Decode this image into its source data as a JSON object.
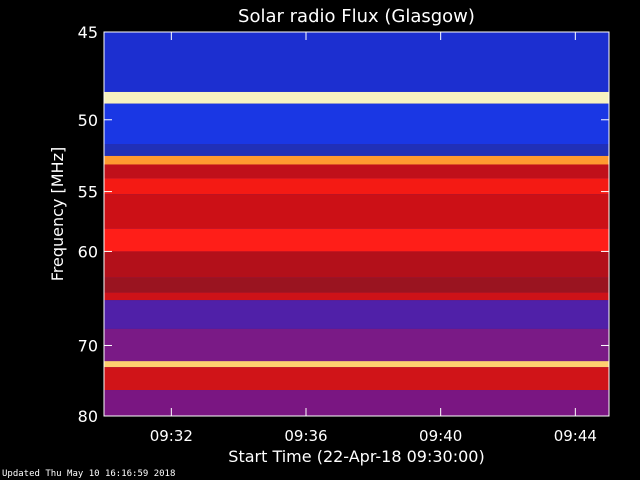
{
  "chart_data": {
    "type": "heatmap",
    "title": "Solar radio Flux (Glasgow)",
    "xlabel": "Start Time (22-Apr-18 09:30:00)",
    "ylabel": "Frequency [MHz]",
    "x_ticks": [
      "09:32",
      "09:36",
      "09:40",
      "09:44"
    ],
    "x_tick_minutes": [
      32,
      36,
      40,
      44
    ],
    "xlim_minutes": [
      30,
      45
    ],
    "y_ticks": [
      45,
      50,
      55,
      60,
      70,
      80
    ],
    "ylim": [
      45,
      80
    ],
    "y_scale": "reciprocal",
    "bands": [
      {
        "from": 45.0,
        "to": 48.3,
        "color": "#1c2fd0"
      },
      {
        "from": 48.3,
        "to": 49.0,
        "color": "#f7f2c0"
      },
      {
        "from": 49.0,
        "to": 51.6,
        "color": "#1a37e4"
      },
      {
        "from": 51.6,
        "to": 52.4,
        "color": "#2030b8"
      },
      {
        "from": 52.4,
        "to": 53.0,
        "color": "#ff9a30"
      },
      {
        "from": 53.0,
        "to": 54.0,
        "color": "#c0101a"
      },
      {
        "from": 54.0,
        "to": 55.2,
        "color": "#f41a14"
      },
      {
        "from": 55.2,
        "to": 58.0,
        "color": "#cc1016"
      },
      {
        "from": 58.0,
        "to": 60.0,
        "color": "#ff1e18"
      },
      {
        "from": 60.0,
        "to": 62.5,
        "color": "#b3101a"
      },
      {
        "from": 62.5,
        "to": 64.0,
        "color": "#9a1420"
      },
      {
        "from": 64.0,
        "to": 64.8,
        "color": "#ce1218"
      },
      {
        "from": 64.8,
        "to": 68.0,
        "color": "#5020a8"
      },
      {
        "from": 68.0,
        "to": 72.0,
        "color": "#7a1a86"
      },
      {
        "from": 72.0,
        "to": 72.8,
        "color": "#ffd070"
      },
      {
        "from": 72.8,
        "to": 76.0,
        "color": "#d01418"
      },
      {
        "from": 76.0,
        "to": 80.0,
        "color": "#7a1682"
      }
    ],
    "grid": false
  },
  "footer": "Updated Thu May 10 16:16:59 2018"
}
